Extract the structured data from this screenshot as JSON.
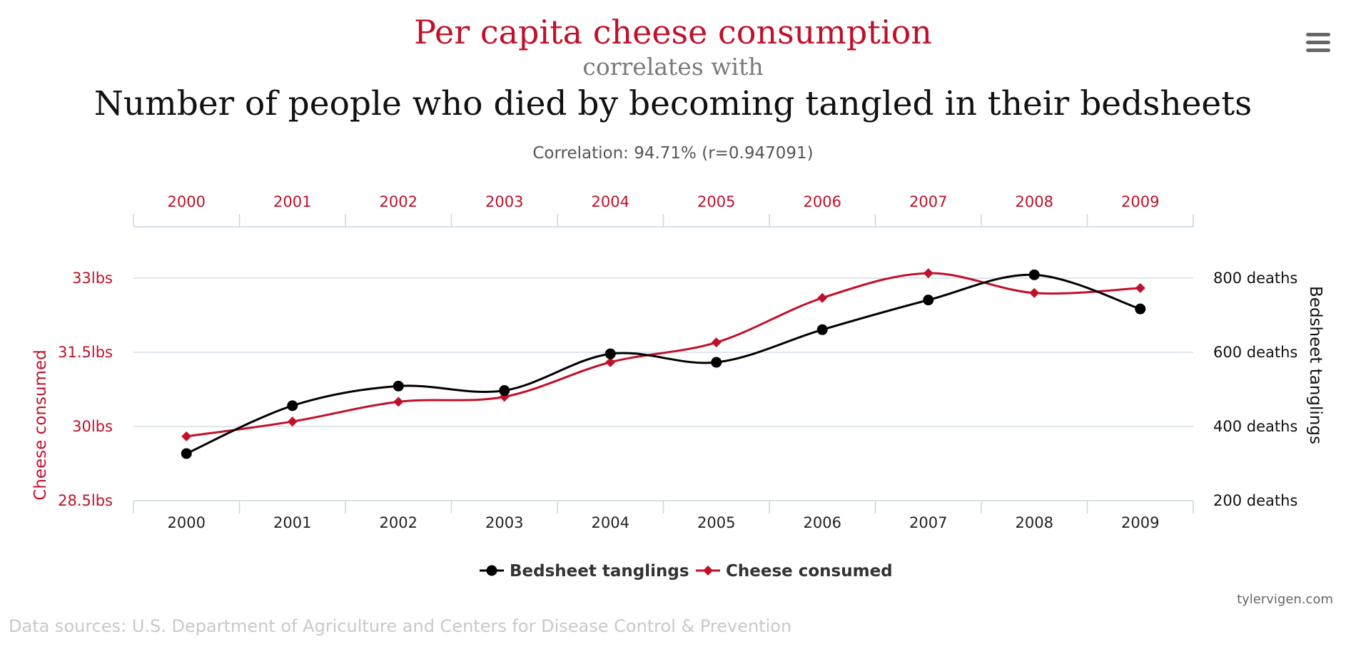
{
  "titles": {
    "line1": "Per capita cheese consumption",
    "line2": "correlates with",
    "line3": "Number of people who died by becoming tangled in their bedsheets",
    "correlation": "Correlation: 94.71% (r=0.947091)"
  },
  "footer": {
    "credit": "tylervigen.com",
    "sources": "Data sources: U.S. Department of Agriculture and Centers for Disease Control & Prevention"
  },
  "colors": {
    "cheese": "#c0102a",
    "bedsheet": "#000000",
    "grid": "#c9d6e3",
    "muted": "#7a7a7a"
  },
  "menu_icon": "hamburger-menu-icon",
  "chart_data": {
    "type": "line",
    "categories": [
      "2000",
      "2001",
      "2002",
      "2003",
      "2004",
      "2005",
      "2006",
      "2007",
      "2008",
      "2009"
    ],
    "series": [
      {
        "name": "Bedsheet tanglings",
        "axis": "right",
        "marker": "circle",
        "values": [
          327,
          456,
          509,
          497,
          596,
          573,
          661,
          741,
          809,
          717
        ]
      },
      {
        "name": "Cheese consumed",
        "axis": "left",
        "marker": "diamond",
        "values": [
          29.8,
          30.1,
          30.5,
          30.6,
          31.3,
          31.7,
          32.6,
          33.1,
          32.7,
          32.8
        ]
      }
    ],
    "left_axis": {
      "label": "Cheese consumed",
      "ticks": [
        28.5,
        30,
        31.5,
        33
      ],
      "tick_labels": [
        "28.5lbs",
        "30lbs",
        "31.5lbs",
        "33lbs"
      ],
      "range": [
        28.5,
        33
      ]
    },
    "right_axis": {
      "label": "Bedsheet tanglings",
      "ticks": [
        200,
        400,
        600,
        800
      ],
      "tick_labels": [
        "200 deaths",
        "400 deaths",
        "600 deaths",
        "800 deaths"
      ],
      "range": [
        200,
        800
      ]
    },
    "grid": true,
    "legend": "bottom-center"
  }
}
